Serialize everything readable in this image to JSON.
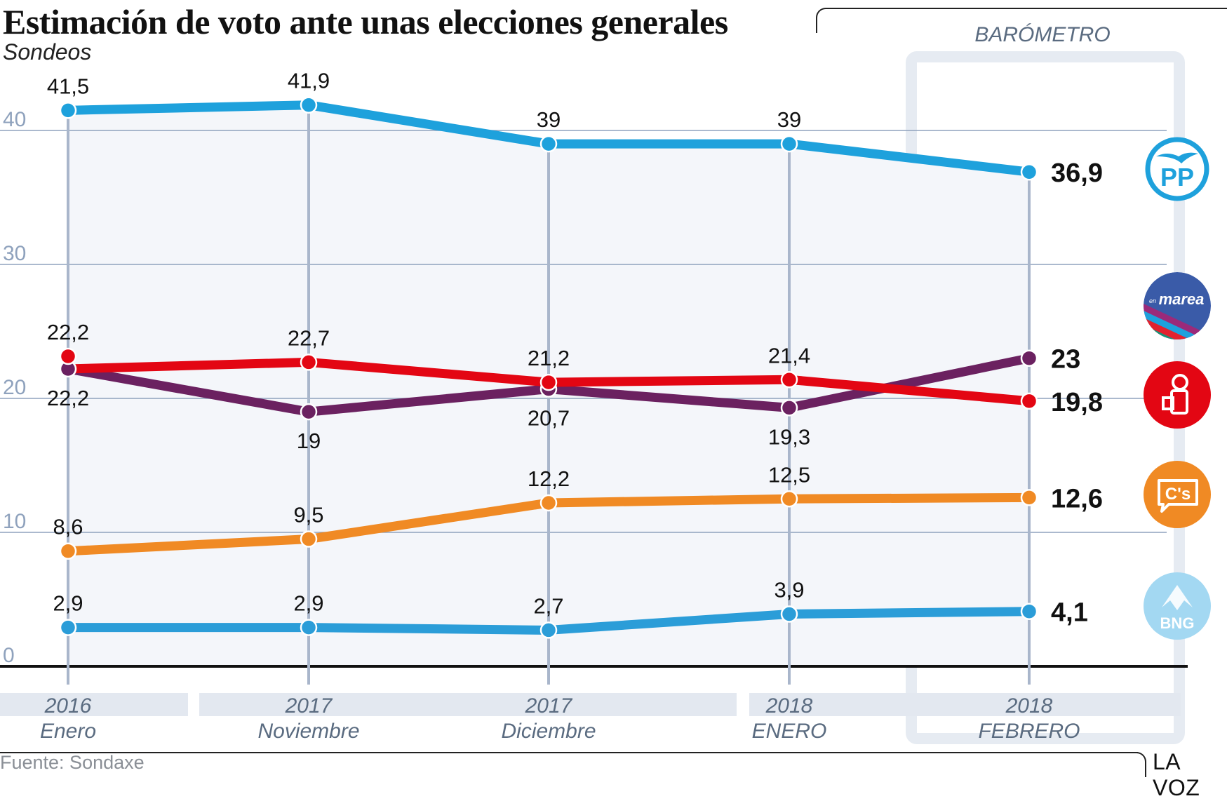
{
  "title": "Estimación de voto ante unas elecciones generales",
  "subtitle": "Sondeos",
  "barometro_label": "BARÓMETRO",
  "source": "Fuente: Sondaxe",
  "brand": "LA VOZ",
  "colors": {
    "pp": "#1ea1dc",
    "en_marea": "#6b2160",
    "psoe": "#e30613",
    "cs": "#f08a24",
    "bng": "#2b9dd8",
    "grid": "#8fa2bd",
    "plot_fill": "#f4f6fa",
    "band": "#e3e8f0",
    "axis_text": "#8fa2bd",
    "category_text": "#5a6b80"
  },
  "logos": [
    {
      "party": "PP",
      "icon": "pp-logo-icon",
      "text": "PP"
    },
    {
      "party": "En Marea",
      "icon": "en-marea-logo-icon",
      "text": "marea",
      "prefix": "en"
    },
    {
      "party": "PSOE",
      "icon": "psoe-rose-fist-logo-icon",
      "text": ""
    },
    {
      "party": "Ciudadanos",
      "icon": "cs-logo-icon",
      "text": "C's"
    },
    {
      "party": "BNG",
      "icon": "bng-logo-icon",
      "text": "BNG"
    }
  ],
  "chart_data": {
    "type": "line",
    "title": "Estimación de voto ante unas elecciones generales",
    "subtitle": "Sondeos",
    "xlabel": "",
    "ylabel": "",
    "ylim": [
      0,
      40
    ],
    "yticks": [
      0,
      10,
      20,
      30,
      40
    ],
    "ytick_labels": [
      "0",
      "10",
      "20",
      "30",
      "40"
    ],
    "grid": true,
    "categories": [
      {
        "year": "2016",
        "month": "Enero"
      },
      {
        "year": "2017",
        "month": "Noviembre"
      },
      {
        "year": "2017",
        "month": "Diciembre"
      },
      {
        "year": "2018",
        "month": "ENERO"
      },
      {
        "year": "2018",
        "month": "FEBRERO"
      }
    ],
    "highlight_category": "FEBRERO",
    "highlight_label": "BARÓMETRO",
    "series": [
      {
        "name": "PP",
        "color": "#1ea1dc",
        "values": [
          41.5,
          41.9,
          39,
          39,
          36.9
        ],
        "labels": [
          "41,5",
          "41,9",
          "39",
          "39",
          "36,9"
        ],
        "label_pos": "above"
      },
      {
        "name": "PSOE",
        "color": "#e30613",
        "values": [
          22.2,
          22.7,
          21.2,
          21.4,
          19.8
        ],
        "labels": [
          "22,2",
          "22,7",
          "21,2",
          "21,4",
          "19,8"
        ],
        "label_pos": "above"
      },
      {
        "name": "En Marea",
        "color": "#6b2160",
        "values": [
          22.2,
          19,
          20.7,
          19.3,
          23
        ],
        "labels": [
          "22,2",
          "19",
          "20,7",
          "19,3",
          "23"
        ],
        "label_pos": "below"
      },
      {
        "name": "Ciudadanos",
        "color": "#f08a24",
        "values": [
          8.6,
          9.5,
          12.2,
          12.5,
          12.6
        ],
        "labels": [
          "8,6",
          "9,5",
          "12,2",
          "12,5",
          "12,6"
        ],
        "label_pos": "above"
      },
      {
        "name": "BNG",
        "color": "#2b9dd8",
        "values": [
          2.9,
          2.9,
          2.7,
          3.9,
          4.1
        ],
        "labels": [
          "2,9",
          "2,9",
          "2,7",
          "3,9",
          "4,1"
        ],
        "label_pos": "above"
      }
    ],
    "legend": "right (party logos next to final values)"
  }
}
